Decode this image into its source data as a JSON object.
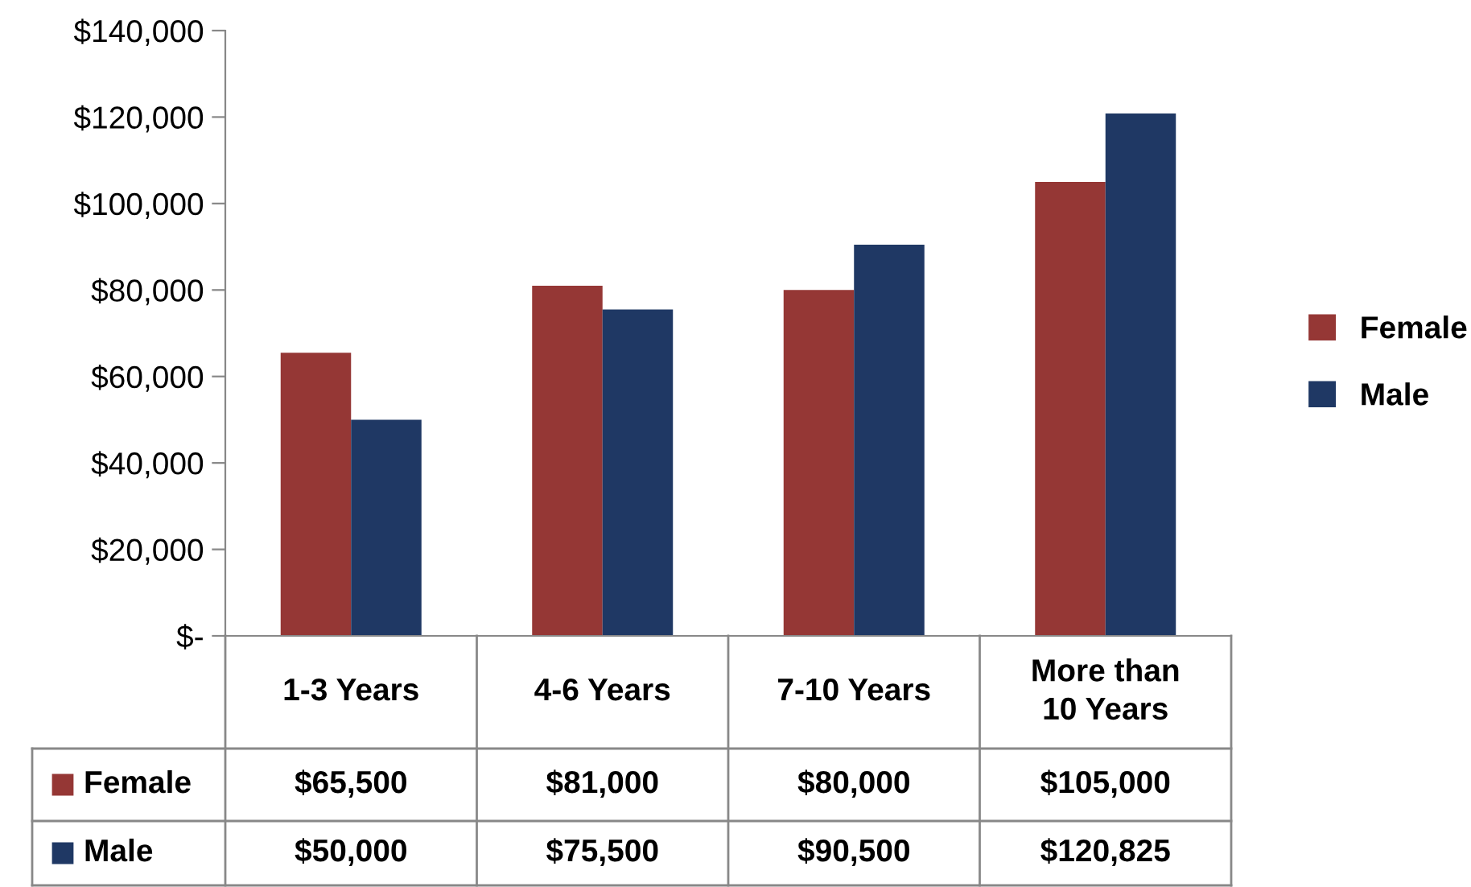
{
  "chart_data": {
    "type": "bar",
    "categories": [
      "1-3 Years",
      "4-6 Years",
      "7-10 Years",
      "More than 10 Years"
    ],
    "series": [
      {
        "name": "Female",
        "color": "#953735",
        "values": [
          65500,
          81000,
          80000,
          105000
        ],
        "value_labels": [
          "$65,500",
          "$81,000",
          "$80,000",
          "$105,000"
        ]
      },
      {
        "name": "Male",
        "color": "#1f3864",
        "values": [
          50000,
          75500,
          90500,
          120825
        ],
        "value_labels": [
          "$50,000",
          "$75,500",
          "$90,500",
          "$120,825"
        ]
      }
    ],
    "ylim": [
      0,
      140000
    ],
    "yticks": [
      {
        "value": 0,
        "label": "$-"
      },
      {
        "value": 20000,
        "label": "$20,000"
      },
      {
        "value": 40000,
        "label": "$40,000"
      },
      {
        "value": 60000,
        "label": "$60,000"
      },
      {
        "value": 80000,
        "label": "$80,000"
      },
      {
        "value": 100000,
        "label": "$100,000"
      },
      {
        "value": 120000,
        "label": "$120,000"
      },
      {
        "value": 140000,
        "label": "$140,000"
      }
    ],
    "grid": false,
    "legend": "right"
  }
}
